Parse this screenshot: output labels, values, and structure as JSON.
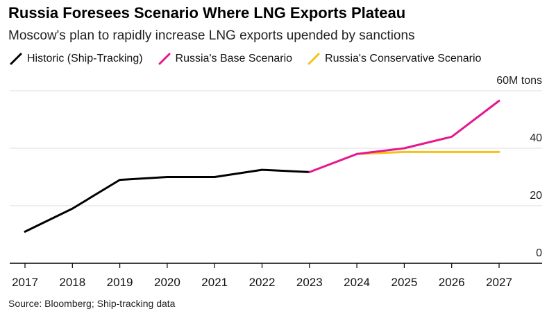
{
  "chart_data": {
    "type": "line",
    "title": "Russia Foresees Scenario Where LNG Exports Plateau",
    "subtitle": "Moscow's plan to rapidly increase LNG exports upended by sanctions",
    "unit_label": "60M tons",
    "source": "Source: Bloomberg; Ship-tracking data",
    "x": [
      "2017",
      "2018",
      "2019",
      "2020",
      "2021",
      "2022",
      "2023",
      "2024",
      "2025",
      "2026",
      "2027"
    ],
    "ylim": [
      0,
      60
    ],
    "yticks": [
      {
        "value": 0,
        "label": "0"
      },
      {
        "value": 20,
        "label": "20"
      },
      {
        "value": 40,
        "label": "40"
      },
      {
        "value": 60,
        "label": "60M tons"
      }
    ],
    "series": [
      {
        "name": "Historic (Ship-Tracking)",
        "color": "#000000",
        "points": [
          {
            "x": "2017",
            "y": 11
          },
          {
            "x": "2018",
            "y": 19
          },
          {
            "x": "2019",
            "y": 29
          },
          {
            "x": "2020",
            "y": 30
          },
          {
            "x": "2021",
            "y": 30
          },
          {
            "x": "2022",
            "y": 32.5
          },
          {
            "x": "2023",
            "y": 31.7
          }
        ]
      },
      {
        "name": "Russia's Base Scenario",
        "color": "#e6178f",
        "points": [
          {
            "x": "2023",
            "y": 31.7
          },
          {
            "x": "2024",
            "y": 38
          },
          {
            "x": "2025",
            "y": 40
          },
          {
            "x": "2026",
            "y": 44
          },
          {
            "x": "2027",
            "y": 56.5
          }
        ]
      },
      {
        "name": "Russia's Conservative Scenario",
        "color": "#f5c218",
        "points": [
          {
            "x": "2024",
            "y": 38
          },
          {
            "x": "2025",
            "y": 38.7
          },
          {
            "x": "2026",
            "y": 38.7
          },
          {
            "x": "2027",
            "y": 38.7
          }
        ]
      }
    ],
    "grid": true,
    "legend_position": "top-left"
  }
}
